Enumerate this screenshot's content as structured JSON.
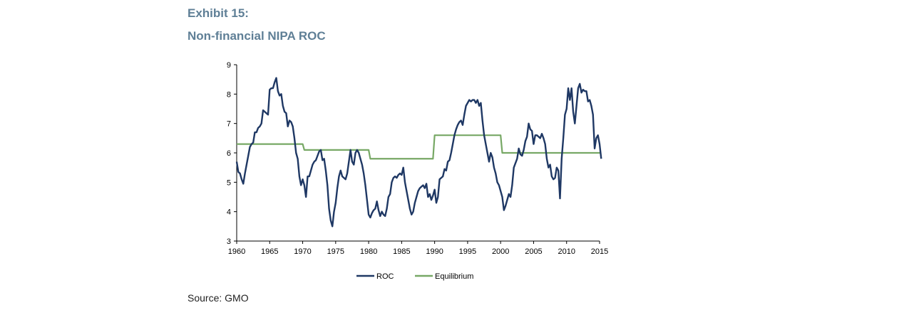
{
  "header": {
    "exhibit": "Exhibit 15:",
    "title": "Non-financial NIPA ROC"
  },
  "source": "Source: GMO",
  "colors": {
    "roc": "#1f3864",
    "equilibrium": "#77a865",
    "title": "#5f7f96",
    "axis": "#000000"
  },
  "chart_data": {
    "type": "line",
    "title": "Non-financial NIPA ROC",
    "xlabel": "",
    "ylabel": "",
    "xlim": [
      1960,
      2015
    ],
    "ylim": [
      3,
      9
    ],
    "x_ticks": [
      1960,
      1965,
      1970,
      1975,
      1980,
      1985,
      1990,
      1995,
      2000,
      2005,
      2010,
      2015
    ],
    "y_ticks": [
      3,
      4,
      5,
      6,
      7,
      8,
      9
    ],
    "grid": false,
    "legend": "bottom",
    "series": [
      {
        "name": "ROC",
        "color": "#1f3864",
        "points": [
          [
            1960.0,
            5.7
          ],
          [
            1960.25,
            5.35
          ],
          [
            1960.5,
            5.3
          ],
          [
            1960.75,
            5.1
          ],
          [
            1961.0,
            4.95
          ],
          [
            1961.25,
            5.3
          ],
          [
            1961.5,
            5.6
          ],
          [
            1961.75,
            5.9
          ],
          [
            1962.0,
            6.2
          ],
          [
            1962.25,
            6.3
          ],
          [
            1962.5,
            6.35
          ],
          [
            1962.75,
            6.7
          ],
          [
            1963.0,
            6.7
          ],
          [
            1963.25,
            6.85
          ],
          [
            1963.5,
            6.9
          ],
          [
            1963.75,
            7.0
          ],
          [
            1964.0,
            7.45
          ],
          [
            1964.25,
            7.4
          ],
          [
            1964.5,
            7.35
          ],
          [
            1964.75,
            7.3
          ],
          [
            1965.0,
            8.15
          ],
          [
            1965.25,
            8.2
          ],
          [
            1965.5,
            8.2
          ],
          [
            1965.75,
            8.4
          ],
          [
            1966.0,
            8.55
          ],
          [
            1966.25,
            8.1
          ],
          [
            1966.5,
            7.95
          ],
          [
            1966.75,
            8.0
          ],
          [
            1967.0,
            7.6
          ],
          [
            1967.25,
            7.4
          ],
          [
            1967.5,
            7.35
          ],
          [
            1967.75,
            6.9
          ],
          [
            1968.0,
            7.1
          ],
          [
            1968.25,
            7.05
          ],
          [
            1968.5,
            6.9
          ],
          [
            1968.75,
            6.5
          ],
          [
            1969.0,
            6.0
          ],
          [
            1969.25,
            5.8
          ],
          [
            1969.5,
            5.2
          ],
          [
            1969.75,
            4.9
          ],
          [
            1970.0,
            5.1
          ],
          [
            1970.25,
            4.9
          ],
          [
            1970.5,
            4.5
          ],
          [
            1970.75,
            5.2
          ],
          [
            1971.0,
            5.2
          ],
          [
            1971.25,
            5.4
          ],
          [
            1971.5,
            5.6
          ],
          [
            1971.75,
            5.7
          ],
          [
            1972.0,
            5.75
          ],
          [
            1972.25,
            5.9
          ],
          [
            1972.5,
            6.05
          ],
          [
            1972.75,
            6.1
          ],
          [
            1973.0,
            5.75
          ],
          [
            1973.25,
            5.8
          ],
          [
            1973.5,
            5.4
          ],
          [
            1973.75,
            4.9
          ],
          [
            1974.0,
            4.1
          ],
          [
            1974.25,
            3.7
          ],
          [
            1974.5,
            3.5
          ],
          [
            1974.75,
            4.0
          ],
          [
            1975.0,
            4.3
          ],
          [
            1975.25,
            4.8
          ],
          [
            1975.5,
            5.2
          ],
          [
            1975.75,
            5.4
          ],
          [
            1976.0,
            5.2
          ],
          [
            1976.25,
            5.15
          ],
          [
            1976.5,
            5.1
          ],
          [
            1976.75,
            5.3
          ],
          [
            1977.0,
            5.7
          ],
          [
            1977.25,
            6.1
          ],
          [
            1977.5,
            5.7
          ],
          [
            1977.75,
            5.6
          ],
          [
            1978.0,
            6.0
          ],
          [
            1978.25,
            6.1
          ],
          [
            1978.5,
            6.0
          ],
          [
            1978.75,
            5.8
          ],
          [
            1979.0,
            5.6
          ],
          [
            1979.25,
            5.3
          ],
          [
            1979.5,
            4.9
          ],
          [
            1979.75,
            4.4
          ],
          [
            1980.0,
            3.9
          ],
          [
            1980.25,
            3.8
          ],
          [
            1980.5,
            3.95
          ],
          [
            1980.75,
            4.05
          ],
          [
            1981.0,
            4.1
          ],
          [
            1981.25,
            4.35
          ],
          [
            1981.5,
            4.05
          ],
          [
            1981.75,
            3.85
          ],
          [
            1982.0,
            4.0
          ],
          [
            1982.25,
            3.9
          ],
          [
            1982.5,
            3.85
          ],
          [
            1982.75,
            4.1
          ],
          [
            1983.0,
            4.5
          ],
          [
            1983.25,
            4.6
          ],
          [
            1983.5,
            5.0
          ],
          [
            1983.75,
            5.15
          ],
          [
            1984.0,
            5.2
          ],
          [
            1984.25,
            5.15
          ],
          [
            1984.5,
            5.25
          ],
          [
            1984.75,
            5.3
          ],
          [
            1985.0,
            5.25
          ],
          [
            1985.25,
            5.5
          ],
          [
            1985.5,
            5.0
          ],
          [
            1985.75,
            4.7
          ],
          [
            1986.0,
            4.4
          ],
          [
            1986.25,
            4.1
          ],
          [
            1986.5,
            3.9
          ],
          [
            1986.75,
            4.0
          ],
          [
            1987.0,
            4.3
          ],
          [
            1987.25,
            4.5
          ],
          [
            1987.5,
            4.7
          ],
          [
            1987.75,
            4.8
          ],
          [
            1988.0,
            4.85
          ],
          [
            1988.25,
            4.9
          ],
          [
            1988.5,
            4.8
          ],
          [
            1988.75,
            4.95
          ],
          [
            1989.0,
            4.5
          ],
          [
            1989.25,
            4.6
          ],
          [
            1989.5,
            4.4
          ],
          [
            1989.75,
            4.55
          ],
          [
            1990.0,
            4.75
          ],
          [
            1990.25,
            4.3
          ],
          [
            1990.5,
            4.5
          ],
          [
            1990.75,
            5.1
          ],
          [
            1991.0,
            5.15
          ],
          [
            1991.25,
            5.2
          ],
          [
            1991.5,
            5.45
          ],
          [
            1991.75,
            5.4
          ],
          [
            1992.0,
            5.7
          ],
          [
            1992.25,
            5.75
          ],
          [
            1992.5,
            6.0
          ],
          [
            1992.75,
            6.3
          ],
          [
            1993.0,
            6.6
          ],
          [
            1993.25,
            6.8
          ],
          [
            1993.5,
            6.95
          ],
          [
            1993.75,
            7.05
          ],
          [
            1994.0,
            7.1
          ],
          [
            1994.25,
            6.95
          ],
          [
            1994.5,
            7.3
          ],
          [
            1994.75,
            7.6
          ],
          [
            1995.0,
            7.7
          ],
          [
            1995.25,
            7.8
          ],
          [
            1995.5,
            7.75
          ],
          [
            1995.75,
            7.8
          ],
          [
            1996.0,
            7.8
          ],
          [
            1996.25,
            7.7
          ],
          [
            1996.5,
            7.8
          ],
          [
            1996.75,
            7.6
          ],
          [
            1997.0,
            7.7
          ],
          [
            1997.25,
            7.1
          ],
          [
            1997.5,
            6.6
          ],
          [
            1997.75,
            6.3
          ],
          [
            1998.0,
            6.0
          ],
          [
            1998.25,
            5.7
          ],
          [
            1998.5,
            6.0
          ],
          [
            1998.75,
            5.85
          ],
          [
            1999.0,
            5.5
          ],
          [
            1999.25,
            5.3
          ],
          [
            1999.5,
            5.0
          ],
          [
            1999.75,
            4.9
          ],
          [
            2000.0,
            4.7
          ],
          [
            2000.25,
            4.5
          ],
          [
            2000.5,
            4.05
          ],
          [
            2000.75,
            4.2
          ],
          [
            2001.0,
            4.4
          ],
          [
            2001.25,
            4.6
          ],
          [
            2001.5,
            4.5
          ],
          [
            2001.75,
            4.9
          ],
          [
            2002.0,
            5.5
          ],
          [
            2002.25,
            5.65
          ],
          [
            2002.5,
            5.8
          ],
          [
            2002.75,
            6.15
          ],
          [
            2003.0,
            5.95
          ],
          [
            2003.25,
            5.9
          ],
          [
            2003.5,
            6.1
          ],
          [
            2003.75,
            6.4
          ],
          [
            2004.0,
            6.55
          ],
          [
            2004.25,
            7.0
          ],
          [
            2004.5,
            6.8
          ],
          [
            2004.75,
            6.75
          ],
          [
            2005.0,
            6.3
          ],
          [
            2005.25,
            6.6
          ],
          [
            2005.5,
            6.6
          ],
          [
            2005.75,
            6.55
          ],
          [
            2006.0,
            6.5
          ],
          [
            2006.25,
            6.65
          ],
          [
            2006.5,
            6.5
          ],
          [
            2006.75,
            6.3
          ],
          [
            2007.0,
            5.8
          ],
          [
            2007.25,
            5.5
          ],
          [
            2007.5,
            5.6
          ],
          [
            2007.75,
            5.2
          ],
          [
            2008.0,
            5.1
          ],
          [
            2008.25,
            5.15
          ],
          [
            2008.5,
            5.5
          ],
          [
            2008.75,
            5.4
          ],
          [
            2009.0,
            4.45
          ],
          [
            2009.25,
            5.8
          ],
          [
            2009.5,
            6.5
          ],
          [
            2009.75,
            7.3
          ],
          [
            2010.0,
            7.5
          ],
          [
            2010.25,
            8.2
          ],
          [
            2010.5,
            7.8
          ],
          [
            2010.75,
            8.2
          ],
          [
            2011.0,
            7.4
          ],
          [
            2011.25,
            7.0
          ],
          [
            2011.5,
            7.6
          ],
          [
            2011.75,
            8.2
          ],
          [
            2012.0,
            8.35
          ],
          [
            2012.25,
            8.05
          ],
          [
            2012.5,
            8.15
          ],
          [
            2012.75,
            8.1
          ],
          [
            2013.0,
            8.1
          ],
          [
            2013.25,
            7.75
          ],
          [
            2013.5,
            7.8
          ],
          [
            2013.75,
            7.6
          ],
          [
            2014.0,
            7.3
          ],
          [
            2014.25,
            6.15
          ],
          [
            2014.5,
            6.5
          ],
          [
            2014.75,
            6.6
          ],
          [
            2015.0,
            6.3
          ],
          [
            2015.25,
            5.8
          ]
        ]
      },
      {
        "name": "Equilibrium",
        "color": "#77a865",
        "points": [
          [
            1960.0,
            6.3
          ],
          [
            1970.0,
            6.3
          ],
          [
            1970.25,
            6.1
          ],
          [
            1980.0,
            6.1
          ],
          [
            1980.25,
            5.8
          ],
          [
            1989.75,
            5.8
          ],
          [
            1990.0,
            6.6
          ],
          [
            2000.0,
            6.6
          ],
          [
            2000.25,
            6.0
          ],
          [
            2015.25,
            6.0
          ]
        ]
      }
    ]
  }
}
